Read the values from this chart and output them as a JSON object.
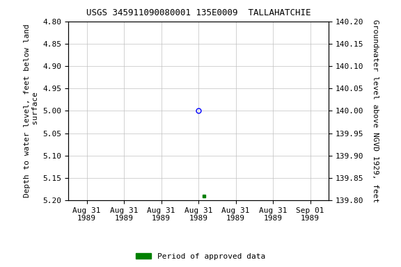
{
  "title": "USGS 345911090080001 135E0009  TALLAHATCHIE",
  "ylabel_left": "Depth to water level, feet below land\n surface",
  "ylabel_right": "Groundwater level above NGVD 1929, feet",
  "ylim_left": [
    5.2,
    4.8
  ],
  "ylim_right": [
    139.8,
    140.2
  ],
  "yticks_left": [
    4.8,
    4.85,
    4.9,
    4.95,
    5.0,
    5.05,
    5.1,
    5.15,
    5.2
  ],
  "yticks_right": [
    140.2,
    140.15,
    140.1,
    140.05,
    140.0,
    139.95,
    139.9,
    139.85,
    139.8
  ],
  "data_point_blue_value": 5.0,
  "data_point_green_value": 5.19,
  "x_tick_labels": [
    "Aug 31\n1989",
    "Aug 31\n1989",
    "Aug 31\n1989",
    "Aug 31\n1989",
    "Aug 31\n1989",
    "Aug 31\n1989",
    "Sep 01\n1989"
  ],
  "legend_label": "Period of approved data",
  "legend_color": "#008000",
  "background_color": "#ffffff",
  "grid_color": "#c0c0c0",
  "tick_label_fontsize": 8,
  "title_fontsize": 9,
  "axis_label_fontsize": 8,
  "legend_fontsize": 8
}
